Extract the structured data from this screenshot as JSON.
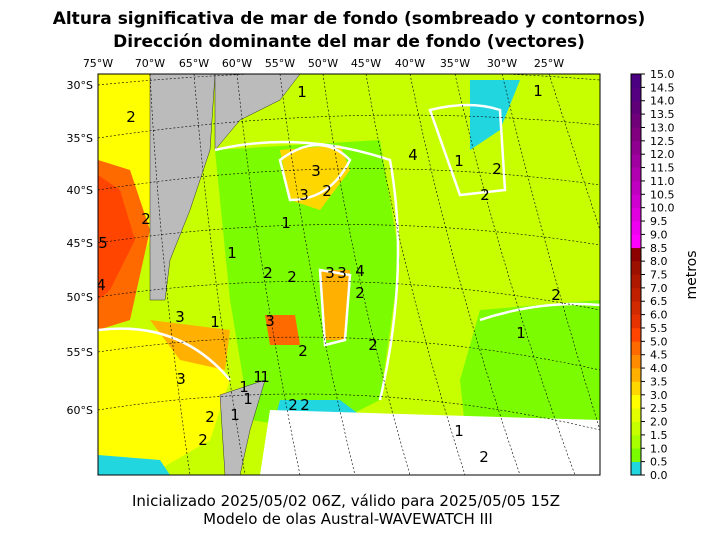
{
  "header": {
    "title": [
      "Altura significativa de mar de fondo (sombreado y contornos)",
      "Dirección dominante del mar de fondo (vectores)"
    ]
  },
  "map": {
    "longitude_labels": [
      "75°W",
      "70°W",
      "65°W",
      "60°W",
      "55°W",
      "50°W",
      "45°W",
      "40°W",
      "35°W",
      "30°W",
      "25°W"
    ],
    "latitude_labels": [
      "30°S",
      "35°S",
      "40°S",
      "45°S",
      "50°S",
      "55°S",
      "60°S"
    ],
    "contour_labels": [
      "2",
      "1",
      "3",
      "3",
      "2",
      "3",
      "2",
      "2",
      "1",
      "1",
      "1",
      "4",
      "5",
      "4",
      "2",
      "3",
      "2",
      "3",
      "4",
      "2",
      "3",
      "1",
      "3",
      "2",
      "2",
      "1",
      "2",
      "2",
      "1",
      "1",
      "1",
      "1",
      "1",
      "2",
      "1",
      "2",
      "2",
      "1",
      "2",
      "2"
    ]
  },
  "colorbar": {
    "label": "metros",
    "ticks": [
      "0.0",
      "0.5",
      "1.0",
      "1.5",
      "2.0",
      "2.5",
      "3.0",
      "3.5",
      "4.0",
      "4.5",
      "5.0",
      "5.5",
      "6.0",
      "6.5",
      "7.0",
      "7.5",
      "8.0",
      "8.5",
      "9.0",
      "9.5",
      "10.0",
      "10.5",
      "11.0",
      "11.5",
      "12.0",
      "12.5",
      "13.0",
      "13.5",
      "14.0",
      "14.5",
      "15.0"
    ]
  },
  "footer": {
    "lines": [
      "Inicializado 2025/05/02 06Z, válido para 2025/05/05 15Z",
      "Modelo de olas Austral-WAVEWATCH III"
    ]
  }
}
